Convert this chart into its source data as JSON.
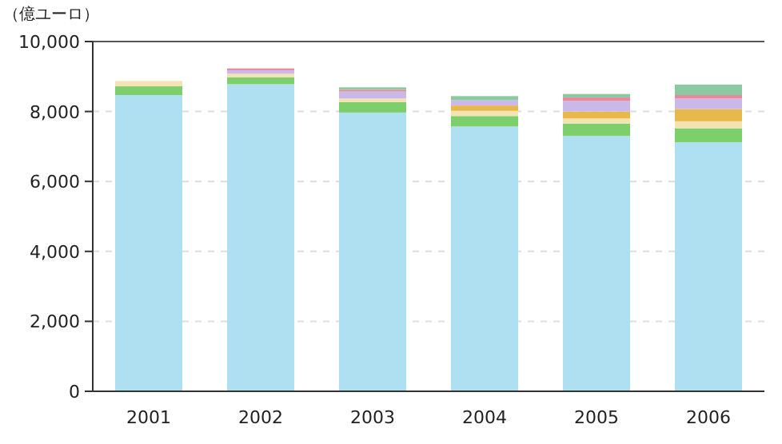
{
  "chart_data": {
    "type": "bar",
    "stacked": true,
    "ylabel": "（億ユーロ）",
    "categories": [
      "2001",
      "2002",
      "2003",
      "2004",
      "2005",
      "2006"
    ],
    "series": [
      {
        "color": "#aee0f2",
        "values": [
          8470,
          8780,
          7970,
          7570,
          7300,
          7120
        ]
      },
      {
        "color": "#7ccf6a",
        "values": [
          250,
          200,
          300,
          300,
          350,
          400
        ]
      },
      {
        "color": "#f3e3b0",
        "values": [
          150,
          100,
          100,
          150,
          150,
          200
        ]
      },
      {
        "color": "#e8b84a",
        "values": [
          0,
          0,
          0,
          150,
          200,
          350
        ]
      },
      {
        "color": "#c9b8e8",
        "values": [
          0,
          100,
          200,
          150,
          300,
          300
        ]
      },
      {
        "color": "#e8889a",
        "values": [
          0,
          50,
          50,
          0,
          100,
          100
        ]
      },
      {
        "color": "#8cc8a0",
        "values": [
          0,
          0,
          70,
          120,
          100,
          300
        ]
      }
    ],
    "ylim": [
      0,
      10000
    ],
    "yticks": [
      {
        "value": 0,
        "label": "0"
      },
      {
        "value": 2000,
        "label": "2,000"
      },
      {
        "value": 4000,
        "label": "4,000"
      },
      {
        "value": 6000,
        "label": "6,000"
      },
      {
        "value": 8000,
        "label": "8,000"
      },
      {
        "value": 10000,
        "label": "10,000"
      }
    ],
    "grid": "y"
  }
}
